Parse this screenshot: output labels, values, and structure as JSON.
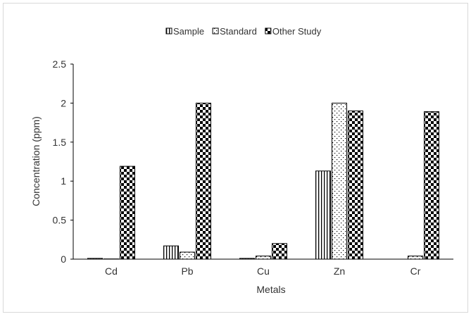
{
  "chart_data": {
    "type": "bar",
    "title": "",
    "xlabel": "Metals",
    "ylabel": "Concentration (ppm)",
    "categories": [
      "Cd",
      "Pb",
      "Cu",
      "Zn",
      "Cr"
    ],
    "ylim": [
      0,
      2.5
    ],
    "yticks": [
      0,
      0.5,
      1,
      1.5,
      2,
      2.5
    ],
    "ytick_labels": [
      "0",
      "0.5",
      "1",
      "1.5",
      "2",
      "2.5"
    ],
    "grid": false,
    "legend_position": "top",
    "series": [
      {
        "name": "Sample",
        "values": [
          0.01,
          0.17,
          0.01,
          1.13,
          0.0
        ],
        "pattern": "vertical-stripes"
      },
      {
        "name": "Standard",
        "values": [
          0.003,
          0.09,
          0.04,
          2.0,
          0.04
        ],
        "pattern": "dots"
      },
      {
        "name": "Other Study",
        "values": [
          1.19,
          2.0,
          0.2,
          1.9,
          1.89
        ],
        "pattern": "checker"
      }
    ],
    "colors": {
      "stroke": "#000000",
      "axis": "#000000",
      "frame": "#d9d9d9"
    }
  }
}
